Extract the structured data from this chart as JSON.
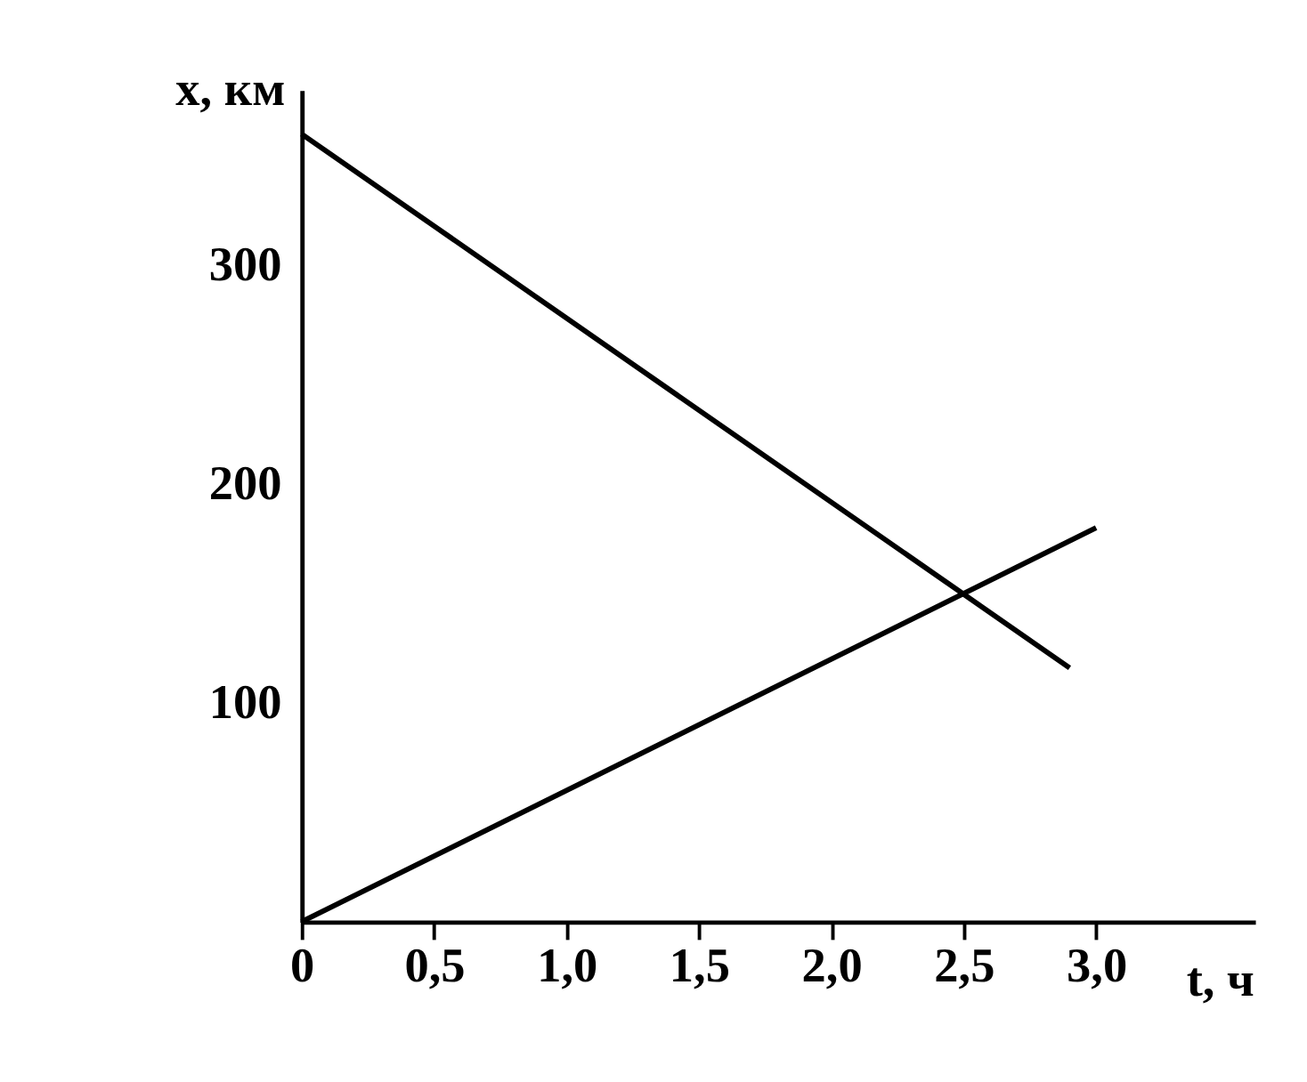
{
  "chart_data": {
    "type": "line",
    "xlabel": "t, ч",
    "ylabel": "x, км",
    "series": [
      {
        "color": "#000000",
        "x": [
          0,
          3.0
        ],
        "values": [
          0,
          180
        ]
      },
      {
        "color": "#000000",
        "x": [
          0,
          2.9
        ],
        "values": [
          360,
          116
        ]
      }
    ],
    "xlim": [
      0,
      3.6
    ],
    "ylim": [
      0,
      380
    ],
    "xticks": [
      {
        "value": 0,
        "label": "0"
      },
      {
        "value": 0.5,
        "label": "0,5"
      },
      {
        "value": 1.0,
        "label": "1,0"
      },
      {
        "value": 1.5,
        "label": "1,5"
      },
      {
        "value": 2.0,
        "label": "2,0"
      },
      {
        "value": 2.5,
        "label": "2,5"
      },
      {
        "value": 3.0,
        "label": "3,0"
      }
    ],
    "yticks": [
      100,
      200,
      300
    ],
    "grid": false,
    "legend": false,
    "marker": "none",
    "line_style": "solid"
  }
}
